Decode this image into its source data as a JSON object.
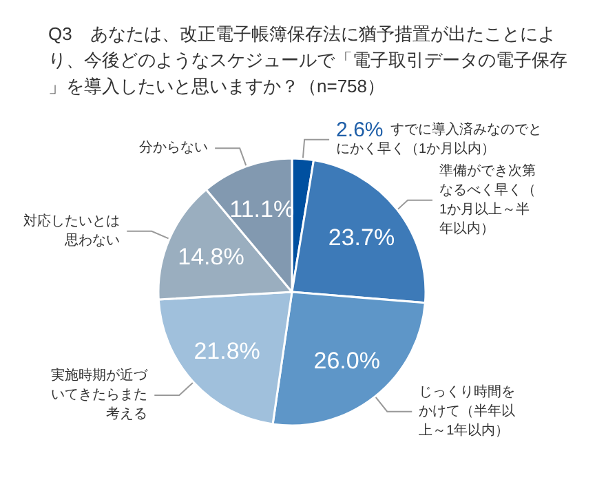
{
  "chart_data": {
    "type": "pie",
    "title": "Q3　あなたは、改正電子帳簿保存法に猶予措置が出たことにより、今後どのようなスケジュールで「電子取引データの電子保存」を導入したいと思いますか？（n=758）",
    "categories": [
      "すでに導入済みなのでとにかく早く（1か月以内）",
      "準備ができ次第なるべく早く（1か月以上～半年以内）",
      "じっくり時間をかけて（半年以上～1年以内）",
      "実施時期が近づいてきたらまた考える",
      "対応したいとは思わない",
      "分からない"
    ],
    "values": [
      2.6,
      23.7,
      26.0,
      21.8,
      14.8,
      11.1
    ],
    "colors": [
      "#0050a0",
      "#3d7ab8",
      "#5e96c8",
      "#a0c0dc",
      "#9aaebf",
      "#8299b0"
    ],
    "value_labels": [
      "2.6%",
      "23.7%",
      "26.0%",
      "21.8%",
      "14.8%",
      "11.1%"
    ]
  }
}
